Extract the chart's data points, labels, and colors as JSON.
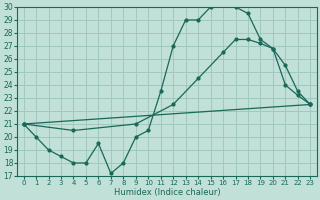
{
  "xlabel": "Humidex (Indice chaleur)",
  "bg_color": "#c0e0d8",
  "grid_color": "#a0c8be",
  "line_color": "#1a6858",
  "xlim": [
    -0.5,
    23.5
  ],
  "ylim": [
    17,
    30
  ],
  "xticks": [
    0,
    1,
    2,
    3,
    4,
    5,
    6,
    7,
    8,
    9,
    10,
    11,
    12,
    13,
    14,
    15,
    16,
    17,
    18,
    19,
    20,
    21,
    22,
    23
  ],
  "yticks": [
    17,
    18,
    19,
    20,
    21,
    22,
    23,
    24,
    25,
    26,
    27,
    28,
    29,
    30
  ],
  "line1_x": [
    0,
    1,
    2,
    3,
    4,
    5,
    6,
    7,
    8,
    9,
    10,
    11,
    12,
    13,
    14,
    15,
    16,
    17,
    18,
    19,
    20,
    21,
    22,
    23
  ],
  "line1_y": [
    21.0,
    20.0,
    19.0,
    18.5,
    18.0,
    18.0,
    19.5,
    17.2,
    18.0,
    20.0,
    20.5,
    23.5,
    27.0,
    29.0,
    29.0,
    30.0,
    30.2,
    30.0,
    29.5,
    27.5,
    26.8,
    24.0,
    23.2,
    22.5
  ],
  "line2_x": [
    0,
    23
  ],
  "line2_y": [
    21.0,
    22.5
  ],
  "line3_x": [
    0,
    4,
    9,
    12,
    14,
    16,
    17,
    18,
    19,
    20,
    21,
    22,
    23
  ],
  "line3_y": [
    21.0,
    20.5,
    21.0,
    22.5,
    24.5,
    26.5,
    27.5,
    27.5,
    27.2,
    26.8,
    25.5,
    23.5,
    22.5
  ]
}
